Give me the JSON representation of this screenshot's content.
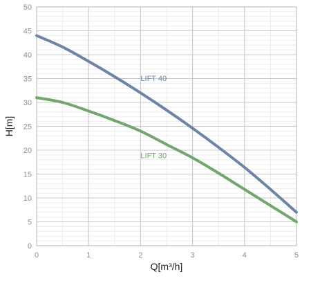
{
  "chart_data": {
    "type": "line",
    "title": "",
    "xlabel": "Q[m³/h]",
    "ylabel": "H[m]",
    "xlim": [
      0,
      5
    ],
    "ylim": [
      0,
      50
    ],
    "grid": true,
    "legend": "none",
    "x_ticks": [
      "0",
      "1",
      "2",
      "3",
      "4",
      "5"
    ],
    "y_ticks": [
      "0",
      "5",
      "10",
      "15",
      "20",
      "25",
      "30",
      "35",
      "40",
      "45",
      "50"
    ],
    "series": [
      {
        "name": "LIFT 40",
        "color": "#6e84a6",
        "x": [
          0,
          0.5,
          1,
          1.5,
          2,
          2.5,
          3,
          3.5,
          4,
          4.5,
          5
        ],
        "y": [
          44,
          41.6,
          38.6,
          35.4,
          32,
          28.4,
          24.6,
          20.6,
          16.4,
          11.8,
          7
        ]
      },
      {
        "name": "LIFT 30",
        "color": "#72a66c",
        "x": [
          0,
          0.5,
          1,
          1.5,
          2,
          2.5,
          3,
          3.5,
          4,
          4.5,
          5
        ],
        "y": [
          31,
          30,
          28.2,
          26.2,
          24,
          21.2,
          18.4,
          15.2,
          11.8,
          8.4,
          5
        ]
      }
    ]
  }
}
